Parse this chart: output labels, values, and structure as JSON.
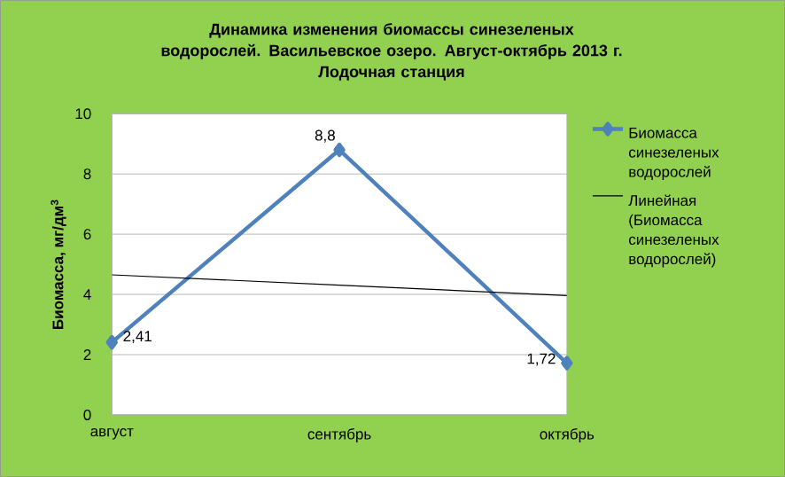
{
  "chart_data": {
    "type": "line",
    "title": "Динамика изменения биомассы синезеленых водорослей. Васильевское озеро. Август-октябрь 2013 г.",
    "subtitle": "Лодочная станция",
    "ylabel": "Биомасса, мг/дм$^{3}$",
    "categories": [
      "август",
      "сентябрь",
      "октябрь"
    ],
    "series": [
      {
        "name": "Биомасса синезеленых водорослей",
        "color": "#4f81bd",
        "values": [
          2.41,
          8.8,
          1.72
        ],
        "value_labels": [
          "2,41",
          "8,8",
          "1,72"
        ],
        "marker": "diamond"
      },
      {
        "name": "Линейная (Биомасса синезеленых водорослей)",
        "color": "#000000",
        "values": [
          4.65,
          4.31,
          3.96
        ],
        "marker": "none"
      }
    ],
    "ylim": [
      0,
      10
    ],
    "yticks": [
      0,
      2,
      4,
      6,
      8,
      10
    ],
    "grid": "y",
    "legend": "right",
    "line_style": "solid"
  }
}
